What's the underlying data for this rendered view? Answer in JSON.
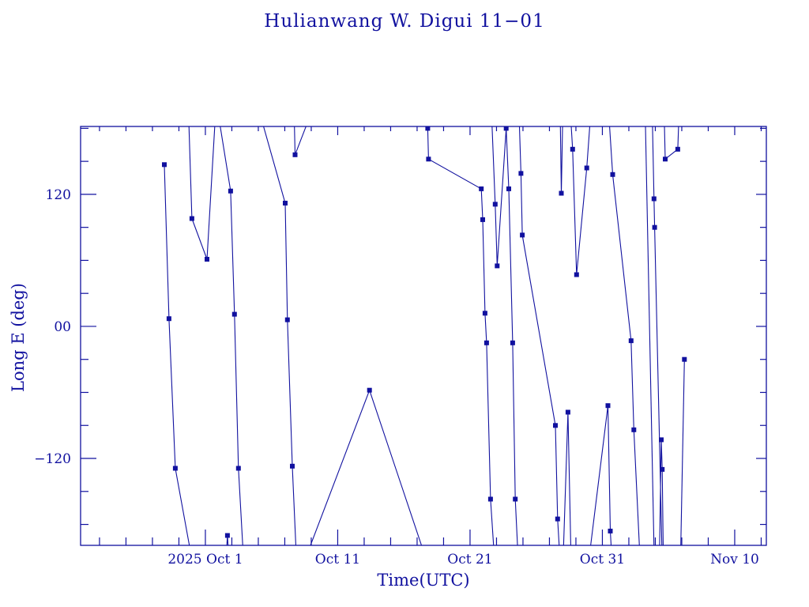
{
  "title": "Hulianwang W. Digui 11−01",
  "axes": {
    "x_title": "Time(UTC)",
    "y_title": "Long E (deg)"
  },
  "colors": {
    "accent": "#11119f",
    "background": "#ffffff"
  },
  "chart_data": {
    "type": "line",
    "title": "Hulianwang W. Digui 11−01",
    "xlabel": "Time(UTC)",
    "ylabel": "Long E (deg)",
    "x_unit": "days relative to 2025-10-01 00:00 UTC",
    "xlim": [
      -9.43,
      42.39
    ],
    "ylim": [
      -199,
      181.7
    ],
    "grid": false,
    "legend": "none",
    "marker": "filled-square",
    "marker_size": 5,
    "x_major_ticks": [
      {
        "day": 0,
        "label": "2025 Oct  1"
      },
      {
        "day": 10,
        "label": "Oct 11"
      },
      {
        "day": 20,
        "label": "Oct 21"
      },
      {
        "day": 30,
        "label": "Oct 31"
      },
      {
        "day": 40,
        "label": "Nov 10"
      }
    ],
    "x_minor_step_days": 2,
    "y_major_ticks": [
      {
        "value": 120,
        "label": "120"
      },
      {
        "value": 0,
        "label": "00"
      },
      {
        "value": -120,
        "label": "−120"
      }
    ],
    "y_minor_step_deg": 30,
    "segments": [
      {
        "name": "seg-a",
        "points": [
          [
            -3.1,
            147,
            1
          ],
          [
            -2.75,
            7,
            1
          ],
          [
            -2.27,
            -129,
            1
          ],
          [
            -1.15,
            -203,
            0
          ]
        ]
      },
      {
        "name": "seg-b",
        "points": [
          [
            -1.25,
            186,
            0
          ],
          [
            -1.02,
            98,
            1
          ],
          [
            0.12,
            61,
            1
          ],
          [
            0.75,
            190,
            0
          ]
        ]
      },
      {
        "name": "seg-c",
        "points": [
          [
            1.0,
            191,
            0
          ],
          [
            1.91,
            123,
            1
          ],
          [
            2.2,
            11,
            1
          ],
          [
            2.5,
            -129,
            1
          ],
          [
            2.85,
            -205,
            0
          ]
        ]
      },
      {
        "name": "seg-c2",
        "points": [
          [
            1.62,
            -199,
            0
          ],
          [
            1.67,
            -190,
            1
          ],
          [
            1.74,
            -205,
            0
          ]
        ]
      },
      {
        "name": "seg-d",
        "points": [
          [
            4.25,
            188,
            0
          ],
          [
            6.03,
            112,
            1
          ],
          [
            6.2,
            6,
            1
          ],
          [
            6.57,
            -127,
            1
          ],
          [
            6.85,
            -203,
            0
          ]
        ]
      },
      {
        "name": "seg-e",
        "points": [
          [
            6.72,
            188,
            0
          ],
          [
            6.78,
            156,
            1
          ],
          [
            7.9,
            191,
            0
          ]
        ]
      },
      {
        "name": "seg-t",
        "points": [
          [
            7.75,
            -205,
            0
          ],
          [
            12.4,
            -58,
            1
          ],
          [
            16.5,
            -205,
            0
          ]
        ]
      },
      {
        "name": "seg-g",
        "points": [
          [
            16.76,
            186,
            0
          ],
          [
            16.8,
            180,
            1
          ],
          [
            16.86,
            152,
            1
          ],
          [
            20.85,
            125,
            1
          ],
          [
            20.96,
            97,
            1
          ],
          [
            21.13,
            12,
            1
          ],
          [
            21.25,
            -15,
            1
          ],
          [
            21.55,
            -157,
            1
          ],
          [
            21.8,
            -203,
            0
          ]
        ]
      },
      {
        "name": "seg-f",
        "points": [
          [
            21.65,
            186,
            0
          ],
          [
            21.9,
            111,
            1
          ],
          [
            22.05,
            55,
            1
          ],
          [
            22.73,
            180,
            1
          ],
          [
            22.93,
            125,
            1
          ],
          [
            23.22,
            -15,
            1
          ],
          [
            23.42,
            -157,
            1
          ],
          [
            23.6,
            -203,
            0
          ]
        ]
      },
      {
        "name": "seg-h",
        "points": [
          [
            23.72,
            186,
            0
          ],
          [
            23.85,
            139,
            1
          ],
          [
            23.95,
            83,
            1
          ],
          [
            26.45,
            -90,
            1
          ],
          [
            26.62,
            -175,
            1
          ],
          [
            26.75,
            -202,
            0
          ]
        ]
      },
      {
        "name": "seg-v",
        "points": [
          [
            26.82,
            187,
            0
          ],
          [
            26.9,
            121,
            1
          ],
          [
            27.0,
            188,
            0
          ]
        ]
      },
      {
        "name": "seg-i",
        "points": [
          [
            27.05,
            -205,
            0
          ],
          [
            27.4,
            -78,
            1
          ],
          [
            27.62,
            -205,
            0
          ]
        ]
      },
      {
        "name": "seg-w",
        "points": [
          [
            27.62,
            187,
            0
          ],
          [
            27.75,
            161,
            1
          ],
          [
            28.05,
            47,
            1
          ],
          [
            28.82,
            144,
            1
          ],
          [
            29.1,
            191,
            0
          ]
        ]
      },
      {
        "name": "seg-p",
        "points": [
          [
            29.05,
            -205,
            0
          ],
          [
            30.42,
            -72,
            1
          ],
          [
            30.6,
            -186,
            1
          ],
          [
            30.68,
            -204,
            0
          ]
        ]
      },
      {
        "name": "seg-q",
        "points": [
          [
            30.52,
            186,
            0
          ],
          [
            30.78,
            138,
            1
          ],
          [
            32.17,
            -13,
            1
          ],
          [
            32.38,
            -94,
            1
          ],
          [
            32.8,
            -201,
            0
          ]
        ]
      },
      {
        "name": "seg-r",
        "points": [
          [
            33.25,
            186,
            0
          ],
          [
            33.9,
            -201,
            0
          ]
        ]
      },
      {
        "name": "seg-s",
        "points": [
          [
            33.78,
            186,
            0
          ],
          [
            33.9,
            116,
            1
          ],
          [
            33.95,
            90,
            1
          ],
          [
            34.5,
            -201,
            0
          ]
        ]
      },
      {
        "name": "seg-u",
        "points": [
          [
            34.32,
            -204,
            0
          ],
          [
            34.45,
            -103,
            1
          ],
          [
            34.52,
            -130,
            1
          ],
          [
            34.6,
            -204,
            0
          ]
        ]
      },
      {
        "name": "seg-j",
        "points": [
          [
            34.68,
            186,
            0
          ],
          [
            34.75,
            152,
            1
          ],
          [
            35.7,
            161,
            1
          ],
          [
            35.77,
            186,
            0
          ]
        ]
      },
      {
        "name": "seg-k",
        "points": [
          [
            35.92,
            -204,
            0
          ],
          [
            36.2,
            -30,
            1
          ]
        ]
      }
    ]
  }
}
